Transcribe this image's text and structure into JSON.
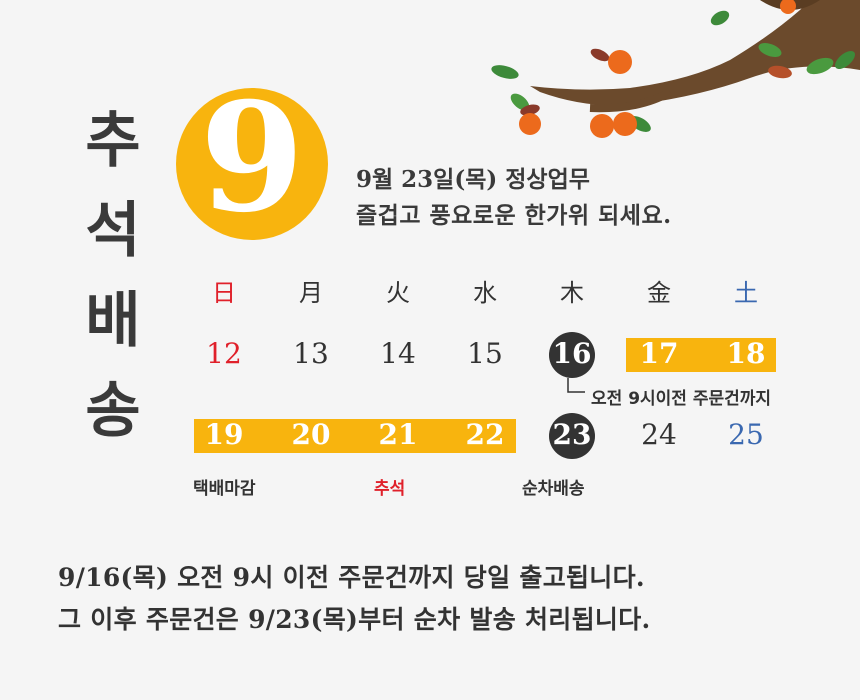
{
  "title_chars": [
    "추",
    "석",
    "배",
    "송"
  ],
  "month": "9",
  "info": {
    "line1": "9월 23일(목) 정상업무",
    "line2": "즐겁고 풍요로운 한가위 되세요."
  },
  "weekdays": [
    "日",
    "月",
    "火",
    "水",
    "木",
    "金",
    "土"
  ],
  "week1": [
    "12",
    "13",
    "14",
    "15",
    "16",
    "17",
    "18"
  ],
  "week2": [
    "19",
    "20",
    "21",
    "22",
    "23",
    "24",
    "25"
  ],
  "callout": "오전 9시이전 주문건까지",
  "labels": {
    "delivery_deadline": "택배마감",
    "holiday": "추석",
    "sequential": "순차배송"
  },
  "notice": {
    "line1": "9/16(목) 오전 9시 이전 주문건까지 당일 출고됩니다.",
    "line2": "그 이후 주문건은 9/23(목)부터 순차 발송 처리됩니다."
  },
  "colors": {
    "accent": "#f8b40e",
    "sunday": "#e0202a",
    "saturday": "#3a68b0",
    "dark": "#333333"
  }
}
